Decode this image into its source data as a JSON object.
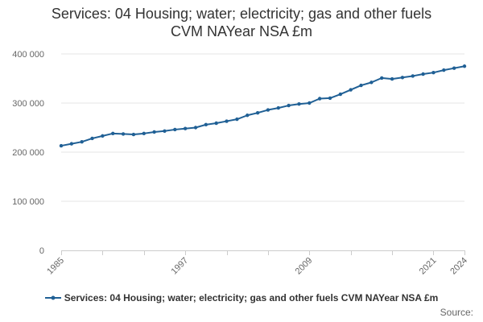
{
  "chart_data": {
    "type": "line",
    "title_lines": [
      "Services: 04 Housing; water; electricity; gas and other fuels",
      "CVM NAYear NSA £m"
    ],
    "xlabel": "",
    "ylabel": "",
    "x_ticks": [
      1985,
      1997,
      2009,
      2021,
      2024
    ],
    "y_ticks": [
      0,
      100000,
      200000,
      300000,
      400000
    ],
    "y_tick_labels": [
      "0",
      "100 000",
      "200 000",
      "300 000",
      "400 000"
    ],
    "xlim": [
      1985,
      2024
    ],
    "ylim": [
      0,
      400000
    ],
    "grid": true,
    "legend_position": "bottom",
    "series": [
      {
        "name": "Services: 04 Housing; water; electricity; gas and other fuels CVM NAYear NSA £m",
        "color": "#206095",
        "x": [
          1985,
          1986,
          1987,
          1988,
          1989,
          1990,
          1991,
          1992,
          1993,
          1994,
          1995,
          1996,
          1997,
          1998,
          1999,
          2000,
          2001,
          2002,
          2003,
          2004,
          2005,
          2006,
          2007,
          2008,
          2009,
          2010,
          2011,
          2012,
          2013,
          2014,
          2015,
          2016,
          2017,
          2018,
          2019,
          2020,
          2021,
          2022,
          2023,
          2024
        ],
        "values": [
          213000,
          217000,
          221000,
          228000,
          233000,
          238000,
          237000,
          236000,
          238000,
          241000,
          243000,
          246000,
          248000,
          250000,
          256000,
          259000,
          263000,
          267000,
          275000,
          280000,
          286000,
          290000,
          295000,
          298000,
          300000,
          309000,
          310000,
          318000,
          327000,
          336000,
          342000,
          351000,
          349000,
          352000,
          355000,
          359000,
          362000,
          367000,
          371000,
          375000
        ]
      }
    ]
  },
  "legend": {
    "label": "Services: 04 Housing; water; electricity; gas and other fuels CVM NAYear NSA £m",
    "color": "#206095"
  },
  "source_label": "Source:"
}
